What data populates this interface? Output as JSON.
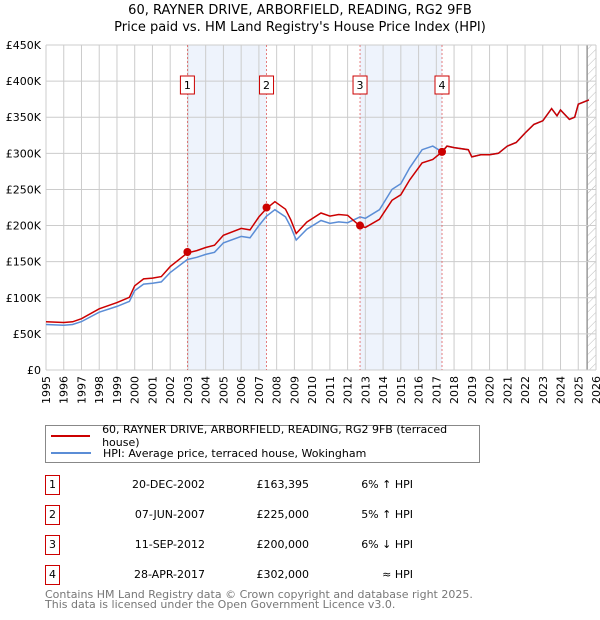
{
  "title_line1": "60, RAYNER DRIVE, ARBORFIELD, READING, RG2 9FB",
  "title_line2": "Price paid vs. HM Land Registry's House Price Index (HPI)",
  "colors": {
    "property": "#cc0000",
    "hpi": "#5b8dd6",
    "shade": "#eef3fc",
    "grid": "#cccccc"
  },
  "legend": {
    "property": "60, RAYNER DRIVE, ARBORFIELD, READING, RG2 9FB (terraced house)",
    "hpi": "HPI: Average price, terraced house, Wokingham"
  },
  "sales": [
    {
      "num": "1",
      "date": "20-DEC-2002",
      "price": "£163,395",
      "hpi": "6% ↑ HPI"
    },
    {
      "num": "2",
      "date": "07-JUN-2007",
      "price": "£225,000",
      "hpi": "5% ↑ HPI"
    },
    {
      "num": "3",
      "date": "11-SEP-2012",
      "price": "£200,000",
      "hpi": "6% ↓ HPI"
    },
    {
      "num": "4",
      "date": "28-APR-2017",
      "price": "£302,000",
      "hpi": "≈ HPI"
    }
  ],
  "footer": [
    "Contains HM Land Registry data © Crown copyright and database right 2025.",
    "This data is licensed under the Open Government Licence v3.0."
  ],
  "chart_data": {
    "type": "line",
    "title": "60, RAYNER DRIVE, ARBORFIELD, READING, RG2 9FB — Price paid vs. HM Land Registry's House Price Index (HPI)",
    "xlim": [
      1995,
      2026
    ],
    "ylim": [
      0,
      450000
    ],
    "x_ticks": [
      "1995",
      "1996",
      "1997",
      "1998",
      "1999",
      "2000",
      "2001",
      "2002",
      "2003",
      "2004",
      "2005",
      "2006",
      "2007",
      "2008",
      "2009",
      "2010",
      "2011",
      "2012",
      "2013",
      "2014",
      "2015",
      "2016",
      "2017",
      "2018",
      "2019",
      "2020",
      "2021",
      "2022",
      "2023",
      "2024",
      "2025",
      "2026"
    ],
    "y_ticks": [
      {
        "v": 0,
        "label": "£0"
      },
      {
        "v": 50000,
        "label": "£50K"
      },
      {
        "v": 100000,
        "label": "£100K"
      },
      {
        "v": 150000,
        "label": "£150K"
      },
      {
        "v": 200000,
        "label": "£200K"
      },
      {
        "v": 250000,
        "label": "£250K"
      },
      {
        "v": 300000,
        "label": "£300K"
      },
      {
        "v": 350000,
        "label": "£350K"
      },
      {
        "v": 400000,
        "label": "£400K"
      },
      {
        "v": 450000,
        "label": "£450K"
      }
    ],
    "grid": true,
    "forecast_start": 2025.5,
    "shaded_ranges": [
      [
        2002.97,
        2007.43
      ],
      [
        2012.7,
        2017.32
      ]
    ],
    "sale_points": [
      {
        "label": "1",
        "x": 2002.97,
        "y": 163395
      },
      {
        "label": "2",
        "x": 2007.43,
        "y": 225000
      },
      {
        "label": "3",
        "x": 2012.7,
        "y": 200000
      },
      {
        "label": "4",
        "x": 2017.32,
        "y": 302000
      }
    ],
    "series": [
      {
        "name": "HPI: Average price, terraced house, Wokingham",
        "x": [
          1995,
          1996,
          1996.5,
          1997,
          1998,
          1999,
          1999.7,
          2000,
          2000.5,
          2001,
          2001.5,
          2002,
          2002.97,
          2003.5,
          2004,
          2004.5,
          2005,
          2006,
          2006.5,
          2007,
          2007.43,
          2007.9,
          2008.5,
          2008.8,
          2009.1,
          2009.7,
          2010.5,
          2011,
          2011.5,
          2012,
          2012.7,
          2013,
          2013.8,
          2014.5,
          2015,
          2015.5,
          2016.2,
          2016.8,
          2017.32,
          2017.6,
          2018,
          2018.8,
          2019,
          2019.5,
          2020,
          2020.5,
          2021,
          2021.5,
          2022,
          2022.5,
          2023,
          2023.5,
          2023.8,
          2024,
          2024.5,
          2024.8,
          2025,
          2025.6
        ],
        "y": [
          63000,
          62000,
          63000,
          67000,
          80000,
          88000,
          95000,
          110000,
          119000,
          120000,
          122000,
          135000,
          153000,
          156000,
          160000,
          163000,
          176000,
          185000,
          183000,
          200000,
          213000,
          222000,
          212000,
          198000,
          180000,
          195000,
          207000,
          203000,
          205000,
          204000,
          212000,
          210000,
          222000,
          250000,
          258000,
          280000,
          305000,
          310000,
          302000,
          310000,
          308000,
          305000,
          295000,
          298000,
          298000,
          300000,
          310000,
          315000,
          328000,
          340000,
          345000,
          362000,
          352000,
          360000,
          347000,
          350000,
          368000,
          374000
        ]
      },
      {
        "name": "60, RAYNER DRIVE, ARBORFIELD, READING, RG2 9FB (terraced house)",
        "derived_from_hpi_with_sale_factors": [
          1.06,
          1.05,
          0.94,
          1.0
        ]
      }
    ]
  }
}
